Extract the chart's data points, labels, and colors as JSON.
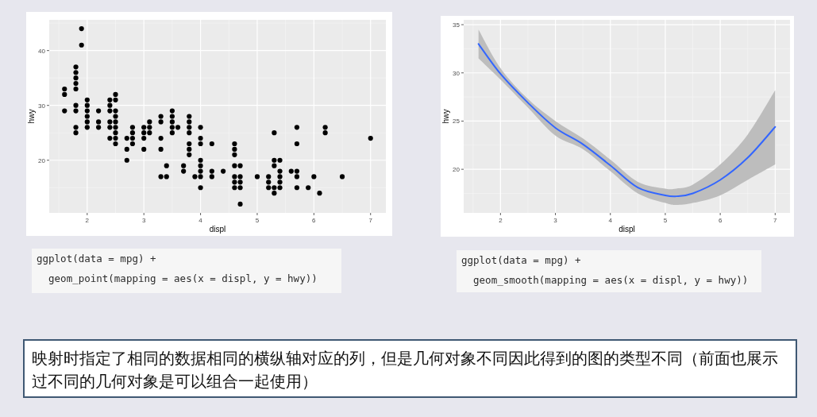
{
  "chart_data": [
    {
      "type": "scatter",
      "xlabel": "displ",
      "ylabel": "hwy",
      "color": "#000000",
      "marker": "circle",
      "grid": true,
      "xlim": [
        1.33,
        7.27
      ],
      "ylim": [
        10.4,
        45.6
      ],
      "xticks": [
        2,
        3,
        4,
        5,
        6,
        7
      ],
      "yticks": [
        20,
        30,
        40
      ],
      "x": [
        1.6,
        1.6,
        1.6,
        1.8,
        1.8,
        1.8,
        1.8,
        1.8,
        1.8,
        1.8,
        1.8,
        1.8,
        1.9,
        1.9,
        2.0,
        2.0,
        2.0,
        2.0,
        2.0,
        2.0,
        2.2,
        2.2,
        2.2,
        2.4,
        2.4,
        2.4,
        2.4,
        2.4,
        2.4,
        2.5,
        2.5,
        2.5,
        2.5,
        2.5,
        2.5,
        2.5,
        2.5,
        2.5,
        2.7,
        2.7,
        2.7,
        2.8,
        2.8,
        2.8,
        2.8,
        3.0,
        3.0,
        3.0,
        3.0,
        3.1,
        3.1,
        3.1,
        3.3,
        3.3,
        3.3,
        3.3,
        3.3,
        3.4,
        3.4,
        3.5,
        3.5,
        3.5,
        3.5,
        3.5,
        3.6,
        3.7,
        3.7,
        3.8,
        3.8,
        3.8,
        3.8,
        3.8,
        3.8,
        3.8,
        3.9,
        4.0,
        4.0,
        4.0,
        4.0,
        4.0,
        4.0,
        4.0,
        4.0,
        4.2,
        4.2,
        4.2,
        4.4,
        4.6,
        4.6,
        4.6,
        4.6,
        4.6,
        4.6,
        4.6,
        4.7,
        4.7,
        4.7,
        4.7,
        4.7,
        5.0,
        5.2,
        5.2,
        5.2,
        5.3,
        5.3,
        5.3,
        5.3,
        5.3,
        5.4,
        5.4,
        5.4,
        5.4,
        5.4,
        5.6,
        5.7,
        5.7,
        5.7,
        5.7,
        5.7,
        5.9,
        6.0,
        6.1,
        6.2,
        6.2,
        6.5,
        7.0
      ],
      "values": [
        29,
        32,
        33,
        25,
        26,
        29,
        30,
        33,
        34,
        35,
        36,
        37,
        41,
        44,
        26,
        27,
        28,
        29,
        30,
        31,
        26,
        27,
        29,
        24,
        26,
        27,
        29,
        30,
        31,
        23,
        24,
        25,
        26,
        27,
        28,
        29,
        31,
        32,
        20,
        22,
        24,
        23,
        24,
        25,
        26,
        22,
        24,
        25,
        26,
        25,
        26,
        27,
        17,
        22,
        24,
        27,
        28,
        17,
        19,
        25,
        26,
        27,
        28,
        29,
        26,
        18,
        19,
        21,
        22,
        23,
        25,
        26,
        27,
        28,
        17,
        15,
        17,
        18,
        19,
        20,
        23,
        24,
        26,
        17,
        18,
        23,
        18,
        15,
        16,
        17,
        19,
        21,
        22,
        23,
        12,
        15,
        16,
        17,
        19,
        17,
        15,
        16,
        17,
        14,
        15,
        19,
        20,
        25,
        15,
        16,
        17,
        18,
        20,
        18,
        15,
        17,
        18,
        23,
        26,
        15,
        17,
        14,
        25,
        26,
        17,
        24
      ],
      "annotations": [
        "ggplot(data = mpg) +",
        "  geom_point(mapping = aes(x = displ, y = hwy))",
        "映射时指定了相同的数据相同的横纵轴对应的列，但是几何对象不同因此得到的图的类型不同（前面也展示过不同的几何对象是可以组合一起使用）"
      ]
    },
    {
      "type": "line",
      "xlabel": "displ",
      "ylabel": "hwy",
      "grid": true,
      "xlim": [
        1.33,
        7.27
      ],
      "ylim": [
        15.48,
        35.5
      ],
      "xticks": [
        2,
        3,
        4,
        5,
        6,
        7
      ],
      "yticks": [
        20,
        25,
        30,
        35
      ],
      "series": [
        {
          "color": "#3366ff",
          "x": [
            1.6,
            2.0,
            2.5,
            3.0,
            3.5,
            4.0,
            4.5,
            5.0,
            5.2,
            5.5,
            6.0,
            6.5,
            7.0
          ],
          "values": [
            33.0,
            29.9,
            26.9,
            24.3,
            22.6,
            20.4,
            18.1,
            17.3,
            17.2,
            17.5,
            18.9,
            21.2,
            24.4
          ],
          "lower": [
            31.5,
            29.3,
            26.4,
            23.5,
            22.1,
            19.8,
            17.5,
            16.5,
            16.3,
            16.5,
            17.3,
            18.9,
            20.5
          ],
          "upper": [
            34.5,
            30.5,
            27.3,
            25.0,
            23.2,
            21.0,
            18.7,
            18.0,
            18.0,
            18.4,
            20.5,
            23.6,
            28.2
          ]
        }
      ],
      "annotations": [
        "ggplot(data = mpg) +",
        "  geom_smooth(mapping = aes(x = displ, y = hwy))"
      ]
    }
  ]
}
